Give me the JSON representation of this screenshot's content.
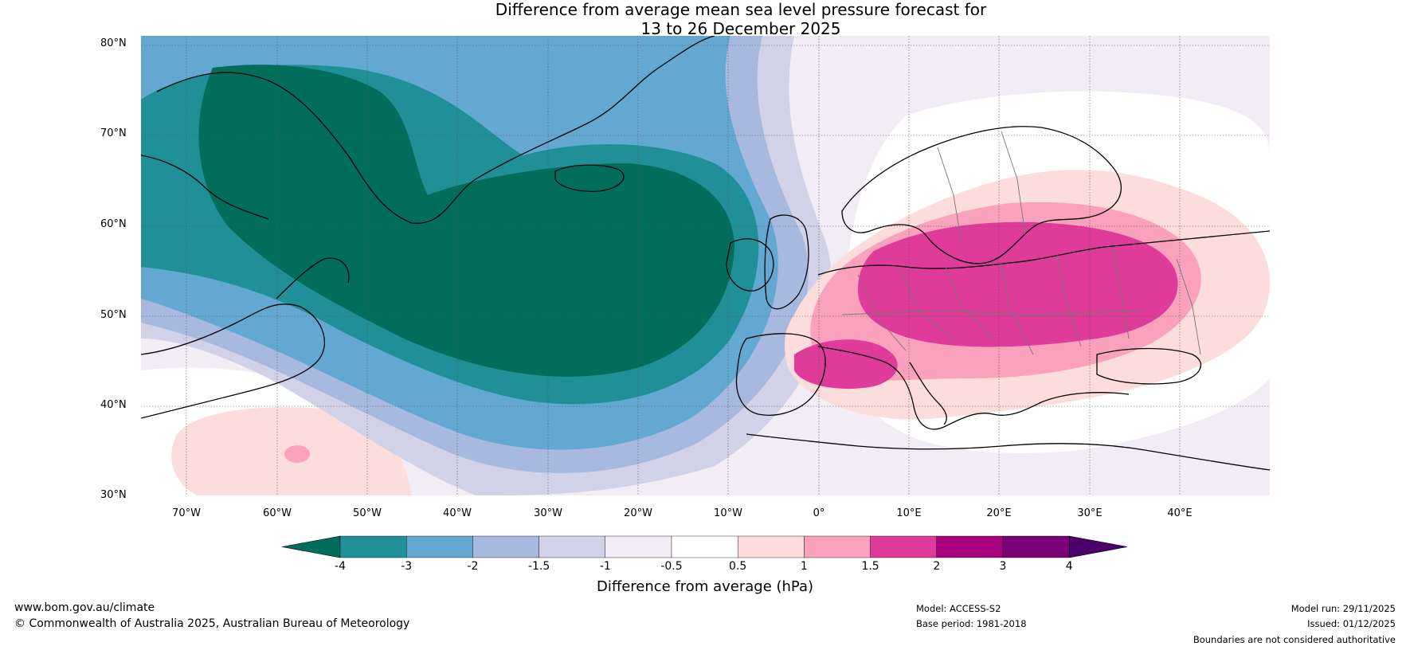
{
  "title": {
    "line1": "Difference from average mean sea level pressure forecast for",
    "line2": "13 to 26 December 2025"
  },
  "lat_labels": [
    "80°N",
    "70°N",
    "60°N",
    "50°N",
    "40°N",
    "30°N"
  ],
  "lon_labels": [
    "70°W",
    "60°W",
    "50°W",
    "40°W",
    "30°W",
    "20°W",
    "10°W",
    "0°",
    "10°E",
    "20°E",
    "30°E",
    "40°E"
  ],
  "colorbar": {
    "ticks": [
      "-4",
      "-3",
      "-2",
      "-1.5",
      "-1",
      "-0.5",
      "0.5",
      "1",
      "1.5",
      "2",
      "3",
      "4"
    ],
    "colors": [
      "#006e5a",
      "#1f8f98",
      "#63a8d0",
      "#a7b9de",
      "#d1d2e8",
      "#f2ecf5",
      "#ffffff",
      "#fddcdc",
      "#f9a1bd",
      "#df3b9a",
      "#a8007f",
      "#7a0077",
      "#4a006a"
    ],
    "label": "Difference from average (hPa)"
  },
  "footer": {
    "site": "www.bom.gov.au/climate",
    "copyright": "© Commonwealth of Australia 2025, Australian Bureau of Meteorology",
    "model": "Model: ACCESS-S2",
    "base_period": "Base period: 1981-2018",
    "model_run": "Model run: 29/11/2025",
    "issued": "Issued: 01/12/2025",
    "disclaimer": "Boundaries are not considered authoritative"
  }
}
